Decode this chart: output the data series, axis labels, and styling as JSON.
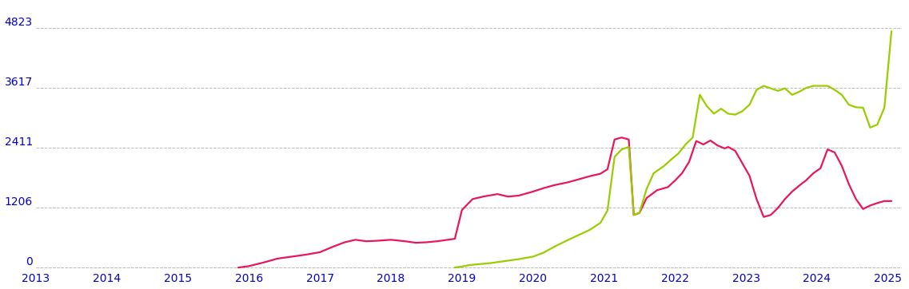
{
  "background_color": "#ffffff",
  "grid_color": "#bbbbbb",
  "ylim": [
    -50,
    5300
  ],
  "yticks": [
    0,
    1206,
    2411,
    3617,
    4823
  ],
  "xlim": [
    2013.0,
    2025.2
  ],
  "xticks": [
    2013,
    2014,
    2015,
    2016,
    2017,
    2018,
    2019,
    2020,
    2021,
    2022,
    2023,
    2024,
    2025
  ],
  "red_color": "#e8175d",
  "green_color": "#9acd00",
  "red_data": [
    [
      2015.85,
      0
    ],
    [
      2016.0,
      30
    ],
    [
      2016.2,
      100
    ],
    [
      2016.4,
      180
    ],
    [
      2016.6,
      220
    ],
    [
      2016.8,
      260
    ],
    [
      2017.0,
      310
    ],
    [
      2017.2,
      430
    ],
    [
      2017.35,
      510
    ],
    [
      2017.5,
      560
    ],
    [
      2017.65,
      530
    ],
    [
      2017.8,
      540
    ],
    [
      2018.0,
      560
    ],
    [
      2018.2,
      530
    ],
    [
      2018.35,
      500
    ],
    [
      2018.5,
      510
    ],
    [
      2018.65,
      530
    ],
    [
      2018.8,
      560
    ],
    [
      2018.9,
      580
    ],
    [
      2019.0,
      1160
    ],
    [
      2019.15,
      1380
    ],
    [
      2019.3,
      1430
    ],
    [
      2019.5,
      1480
    ],
    [
      2019.65,
      1430
    ],
    [
      2019.8,
      1450
    ],
    [
      2020.0,
      1530
    ],
    [
      2020.15,
      1600
    ],
    [
      2020.3,
      1660
    ],
    [
      2020.5,
      1720
    ],
    [
      2020.65,
      1780
    ],
    [
      2020.8,
      1840
    ],
    [
      2020.95,
      1890
    ],
    [
      2021.05,
      1980
    ],
    [
      2021.15,
      2580
    ],
    [
      2021.25,
      2620
    ],
    [
      2021.35,
      2580
    ],
    [
      2021.42,
      1060
    ],
    [
      2021.5,
      1100
    ],
    [
      2021.6,
      1400
    ],
    [
      2021.75,
      1560
    ],
    [
      2021.9,
      1620
    ],
    [
      2022.0,
      1750
    ],
    [
      2022.1,
      1900
    ],
    [
      2022.2,
      2130
    ],
    [
      2022.3,
      2550
    ],
    [
      2022.4,
      2480
    ],
    [
      2022.5,
      2560
    ],
    [
      2022.6,
      2460
    ],
    [
      2022.7,
      2400
    ],
    [
      2022.75,
      2430
    ],
    [
      2022.85,
      2350
    ],
    [
      2022.95,
      2100
    ],
    [
      2023.05,
      1850
    ],
    [
      2023.15,
      1380
    ],
    [
      2023.25,
      1020
    ],
    [
      2023.35,
      1060
    ],
    [
      2023.45,
      1200
    ],
    [
      2023.55,
      1380
    ],
    [
      2023.65,
      1530
    ],
    [
      2023.75,
      1650
    ],
    [
      2023.85,
      1760
    ],
    [
      2023.95,
      1900
    ],
    [
      2024.05,
      2000
    ],
    [
      2024.15,
      2380
    ],
    [
      2024.25,
      2320
    ],
    [
      2024.35,
      2050
    ],
    [
      2024.45,
      1680
    ],
    [
      2024.55,
      1380
    ],
    [
      2024.65,
      1180
    ],
    [
      2024.75,
      1250
    ],
    [
      2024.85,
      1300
    ],
    [
      2024.95,
      1340
    ],
    [
      2025.05,
      1340
    ]
  ],
  "green_data": [
    [
      2018.9,
      0
    ],
    [
      2019.0,
      20
    ],
    [
      2019.1,
      50
    ],
    [
      2019.25,
      70
    ],
    [
      2019.4,
      90
    ],
    [
      2019.6,
      130
    ],
    [
      2019.8,
      170
    ],
    [
      2020.0,
      220
    ],
    [
      2020.15,
      300
    ],
    [
      2020.3,
      420
    ],
    [
      2020.5,
      560
    ],
    [
      2020.65,
      660
    ],
    [
      2020.8,
      760
    ],
    [
      2020.95,
      900
    ],
    [
      2021.05,
      1150
    ],
    [
      2021.15,
      2230
    ],
    [
      2021.25,
      2380
    ],
    [
      2021.35,
      2430
    ],
    [
      2021.42,
      1060
    ],
    [
      2021.5,
      1100
    ],
    [
      2021.6,
      1580
    ],
    [
      2021.7,
      1900
    ],
    [
      2021.85,
      2050
    ],
    [
      2021.95,
      2180
    ],
    [
      2022.05,
      2300
    ],
    [
      2022.15,
      2480
    ],
    [
      2022.25,
      2620
    ],
    [
      2022.35,
      3480
    ],
    [
      2022.45,
      3250
    ],
    [
      2022.55,
      3100
    ],
    [
      2022.65,
      3200
    ],
    [
      2022.75,
      3100
    ],
    [
      2022.85,
      3080
    ],
    [
      2022.95,
      3150
    ],
    [
      2023.05,
      3280
    ],
    [
      2023.15,
      3580
    ],
    [
      2023.25,
      3660
    ],
    [
      2023.35,
      3610
    ],
    [
      2023.45,
      3560
    ],
    [
      2023.55,
      3610
    ],
    [
      2023.65,
      3480
    ],
    [
      2023.75,
      3540
    ],
    [
      2023.85,
      3620
    ],
    [
      2023.95,
      3660
    ],
    [
      2024.05,
      3660
    ],
    [
      2024.15,
      3660
    ],
    [
      2024.25,
      3580
    ],
    [
      2024.35,
      3480
    ],
    [
      2024.45,
      3280
    ],
    [
      2024.55,
      3230
    ],
    [
      2024.65,
      3220
    ],
    [
      2024.75,
      2820
    ],
    [
      2024.85,
      2880
    ],
    [
      2024.95,
      3220
    ],
    [
      2025.05,
      4760
    ]
  ],
  "tick_color": "#0000cc",
  "tick_fontsize": 10,
  "grid_linestyle": "--",
  "grid_linewidth": 0.7,
  "line_width": 1.6
}
